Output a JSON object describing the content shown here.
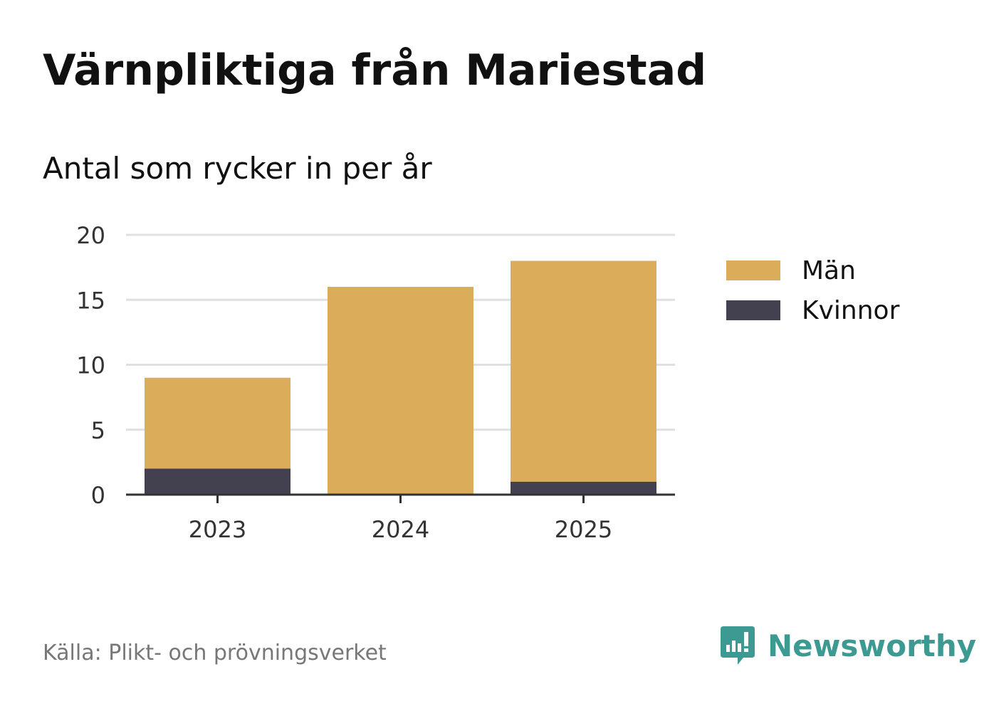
{
  "title": "Värnpliktiga från Mariestad",
  "subtitle": "Antal som rycker in per år",
  "source": "Källa: Plikt- och prövningsverket",
  "brand": "Newsworthy",
  "colors": {
    "man": "#dbac5a",
    "kvinnor": "#434050",
    "grid": "#e0e0e0",
    "axis": "#333333",
    "brand": "#3d9a92"
  },
  "legend": [
    {
      "label": "Män",
      "color": "#dbac5a"
    },
    {
      "label": "Kvinnor",
      "color": "#434050"
    }
  ],
  "chart_data": {
    "type": "bar",
    "stacked": true,
    "title": "Värnpliktiga från Mariestad",
    "subtitle": "Antal som rycker in per år",
    "categories": [
      "2023",
      "2024",
      "2025"
    ],
    "series": [
      {
        "name": "Kvinnor",
        "values": [
          2,
          0,
          1
        ],
        "color": "#434050"
      },
      {
        "name": "Män",
        "values": [
          7,
          16,
          17
        ],
        "color": "#dbac5a"
      }
    ],
    "ylim": [
      0,
      20
    ],
    "yticks": [
      0,
      5,
      10,
      15,
      20
    ],
    "grid": true,
    "legend_position": "right",
    "xlabel": "",
    "ylabel": ""
  }
}
